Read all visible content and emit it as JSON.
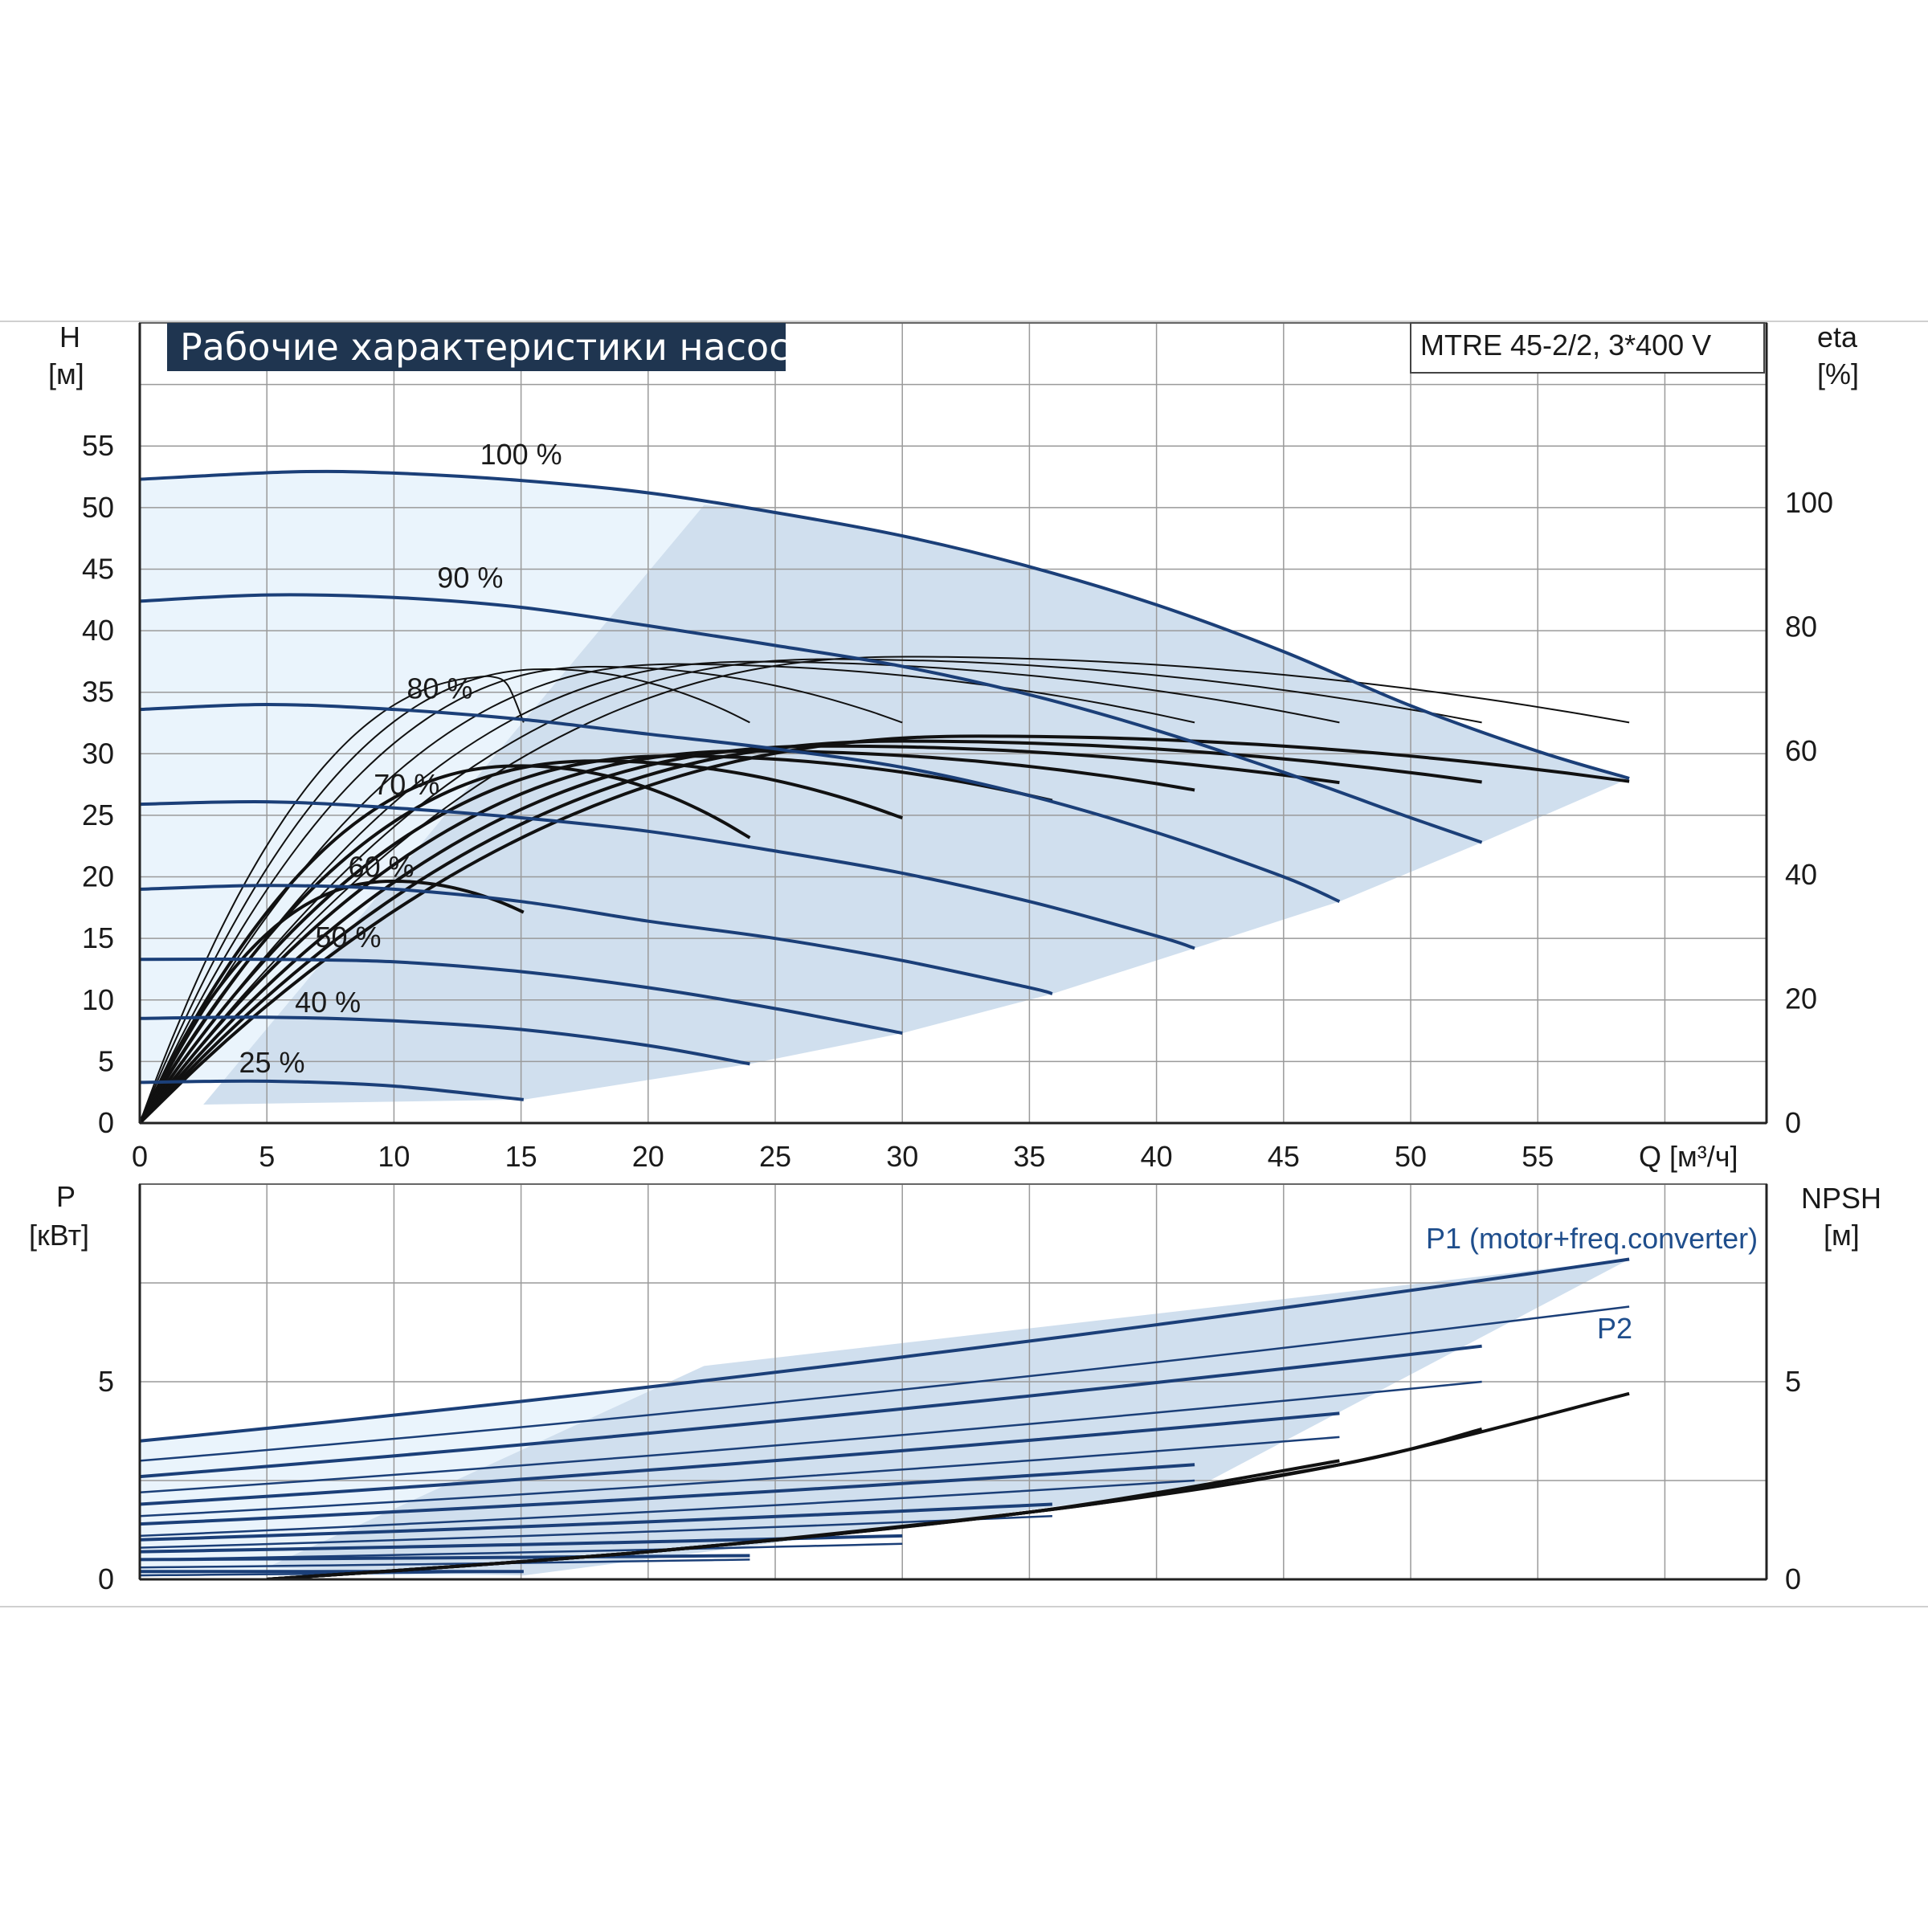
{
  "header": {
    "title": "Рабочие характеристики насоса",
    "model": "MTRE 45-2/2, 3*400 V"
  },
  "colors": {
    "curve_blue": "#1b3f78",
    "area_light": "#eaf4fc",
    "area_dark": "#d0dfee",
    "title_bg": "#1f3550",
    "grid": "#9a9a9a",
    "efficiency": "#111111"
  },
  "axes": {
    "top_left_label": "H",
    "top_left_unit": "[м]",
    "top_right_label": "eta",
    "top_right_unit": "[%]",
    "x_label": "Q [м³/ч]",
    "bottom_left_label": "P",
    "bottom_left_unit": "[кВт]",
    "bottom_right_label": "NPSH",
    "bottom_right_unit": "[м]"
  },
  "legend": {
    "p1": "P1 (motor+freq.converter)",
    "p2": "P2"
  },
  "chart_data": [
    {
      "type": "line",
      "panel": "head",
      "x_ticks": [
        "0",
        "5",
        "10",
        "15",
        "20",
        "25",
        "30",
        "35",
        "40",
        "45",
        "50",
        "55"
      ],
      "y_ticks": [
        "0",
        "5",
        "10",
        "15",
        "20",
        "25",
        "30",
        "35",
        "40",
        "45",
        "50",
        "55"
      ],
      "eta_ticks": [
        "0",
        "20",
        "40",
        "60",
        "80",
        "100"
      ],
      "xlim": [
        0,
        64
      ],
      "ylim": [
        0,
        65
      ],
      "eta_lim": [
        0,
        100
      ],
      "grid": true,
      "series": [
        {
          "name": "100 %",
          "qmax": 58.6,
          "h0": 52.3,
          "x": [
            0,
            6,
            10,
            15,
            20,
            25,
            30,
            35,
            40,
            45,
            50,
            55,
            58.6
          ],
          "values": [
            52.3,
            52.9,
            52.8,
            52.2,
            51.2,
            49.6,
            47.7,
            45.2,
            42.1,
            38.3,
            33.9,
            30.2,
            28.0
          ]
        },
        {
          "name": "90 %",
          "qmax": 52.8,
          "h0": 42.4,
          "x": [
            0,
            5,
            10,
            15,
            20,
            25,
            30,
            35,
            40,
            45,
            50,
            52.8
          ],
          "values": [
            42.4,
            42.9,
            42.7,
            41.9,
            40.4,
            38.8,
            37.1,
            34.8,
            31.9,
            28.5,
            24.8,
            22.8
          ]
        },
        {
          "name": "80 %",
          "qmax": 47.2,
          "h0": 33.6,
          "x": [
            0,
            5,
            10,
            15,
            20,
            25,
            30,
            35,
            40,
            45,
            47.2
          ],
          "values": [
            33.6,
            34.0,
            33.6,
            32.8,
            31.6,
            30.4,
            28.9,
            26.6,
            23.6,
            20.0,
            18.0
          ]
        },
        {
          "name": "70 %",
          "qmax": 41.5,
          "h0": 25.9,
          "x": [
            0,
            5,
            10,
            15,
            20,
            25,
            30,
            35,
            40,
            41.5
          ],
          "values": [
            25.9,
            26.1,
            25.6,
            24.8,
            23.7,
            22.1,
            20.3,
            18.0,
            15.2,
            14.2
          ]
        },
        {
          "name": "60 %",
          "qmax": 35.9,
          "h0": 19.0,
          "x": [
            0,
            5,
            10,
            15,
            20,
            25,
            30,
            35,
            35.9
          ],
          "values": [
            19.0,
            19.3,
            19.0,
            18.0,
            16.4,
            15.0,
            13.2,
            11.0,
            10.5
          ]
        },
        {
          "name": "50 %",
          "qmax": 30.0,
          "h0": 13.3,
          "x": [
            0,
            5,
            10,
            15,
            20,
            25,
            30
          ],
          "values": [
            13.3,
            13.3,
            13.1,
            12.3,
            11.0,
            9.3,
            7.3
          ]
        },
        {
          "name": "40 %",
          "qmax": 24.0,
          "h0": 8.5,
          "x": [
            0,
            5,
            10,
            15,
            20,
            24
          ],
          "values": [
            8.5,
            8.6,
            8.3,
            7.6,
            6.3,
            4.8
          ]
        },
        {
          "name": "25 %",
          "qmax": 15.1,
          "h0": 3.3,
          "x": [
            0,
            5,
            10,
            15.1
          ],
          "values": [
            3.3,
            3.4,
            3.0,
            1.9
          ]
        }
      ],
      "efficiency_series": [
        {
          "qmax": 58.6,
          "eta_peak": 62.4,
          "q_peak": 33,
          "eta_end": 55.1
        },
        {
          "qmax": 52.8,
          "eta_peak": 61.6,
          "q_peak": 30,
          "eta_end": 55.0
        },
        {
          "qmax": 47.2,
          "eta_peak": 60.8,
          "q_peak": 27,
          "eta_end": 54.9
        },
        {
          "qmax": 41.5,
          "eta_peak": 60.0,
          "q_peak": 24,
          "eta_end": 53.7
        },
        {
          "qmax": 35.9,
          "eta_peak": 59.2,
          "q_peak": 21,
          "eta_end": 52.0
        },
        {
          "qmax": 30.0,
          "eta_peak": 58.4,
          "q_peak": 18,
          "eta_end": 49.2
        },
        {
          "qmax": 24.0,
          "eta_peak": 57.6,
          "q_peak": 15,
          "eta_end": 46.0
        },
        {
          "qmax": 15.1,
          "eta_peak": 39.0,
          "q_peak": 10,
          "eta_end": 34.0
        }
      ],
      "efficiency_series_upper": [
        {
          "qmax": 58.6,
          "eta_peak": 75.2,
          "q_peak": 30,
          "eta_end": 64.6
        },
        {
          "qmax": 52.8,
          "eta_peak": 74.8,
          "q_peak": 27,
          "eta_end": 64.6
        },
        {
          "qmax": 47.2,
          "eta_peak": 74.4,
          "q_peak": 24,
          "eta_end": 64.6
        },
        {
          "qmax": 41.5,
          "eta_peak": 74.0,
          "q_peak": 21,
          "eta_end": 64.6
        },
        {
          "qmax": 30.0,
          "eta_peak": 73.6,
          "q_peak": 18,
          "eta_end": 64.6
        },
        {
          "qmax": 24.0,
          "eta_peak": 73.2,
          "q_peak": 16,
          "eta_end": 64.6
        },
        {
          "qmax": 15.1,
          "eta_peak": 72.0,
          "q_peak": 14,
          "eta_end": 64.6
        }
      ]
    },
    {
      "type": "line",
      "panel": "power",
      "y_ticks": [
        "0",
        "5"
      ],
      "npsh_ticks": [
        "0",
        "5"
      ],
      "xlim": [
        0,
        64
      ],
      "ylim": [
        0,
        10
      ],
      "grid": true,
      "p1_series": [
        {
          "qmax": 58.6,
          "p0": 3.5,
          "p_end": 8.1
        },
        {
          "qmax": 52.8,
          "p0": 2.6,
          "p_end": 5.9
        },
        {
          "qmax": 47.2,
          "p0": 1.9,
          "p_end": 4.2
        },
        {
          "qmax": 41.5,
          "p0": 1.4,
          "p_end": 2.9
        },
        {
          "qmax": 35.9,
          "p0": 1.0,
          "p_end": 1.9
        },
        {
          "qmax": 30.0,
          "p0": 0.7,
          "p_end": 1.1
        },
        {
          "qmax": 24.0,
          "p0": 0.5,
          "p_end": 0.6
        },
        {
          "qmax": 15.1,
          "p0": 0.2,
          "p_end": 0.2
        }
      ],
      "p2_series": [
        {
          "qmax": 58.6,
          "p0": 3.0,
          "p_end": 6.9
        },
        {
          "qmax": 52.8,
          "p0": 2.2,
          "p_end": 5.0
        },
        {
          "qmax": 47.2,
          "p0": 1.6,
          "p_end": 3.6
        },
        {
          "qmax": 41.5,
          "p0": 1.1,
          "p_end": 2.5
        },
        {
          "qmax": 35.9,
          "p0": 0.8,
          "p_end": 1.6
        },
        {
          "qmax": 30.0,
          "p0": 0.5,
          "p_end": 0.9
        },
        {
          "qmax": 24.0,
          "p0": 0.3,
          "p_end": 0.5
        },
        {
          "qmax": 15.1,
          "p0": 0.1,
          "p_end": 0.2
        }
      ],
      "npsh_series": [
        {
          "qmax": 58.6,
          "values_x": [
            5,
            20,
            35,
            47.2,
            58.6
          ],
          "values": [
            0.0,
            0.7,
            1.7,
            2.9,
            4.7
          ]
        },
        {
          "qmax": 52.8,
          "values_x": [
            5,
            20,
            35,
            47.2,
            52.8
          ],
          "values": [
            0.0,
            0.7,
            1.7,
            2.9,
            3.8
          ]
        },
        {
          "qmax": 47.2,
          "values_x": [
            5,
            20,
            35,
            47.2
          ],
          "values": [
            0.0,
            0.7,
            1.7,
            3.0
          ]
        },
        {
          "qmax": 41.5,
          "values_x": [
            5,
            20,
            35,
            41.5
          ],
          "values": [
            0.0,
            0.7,
            1.7,
            2.3
          ]
        }
      ]
    }
  ]
}
